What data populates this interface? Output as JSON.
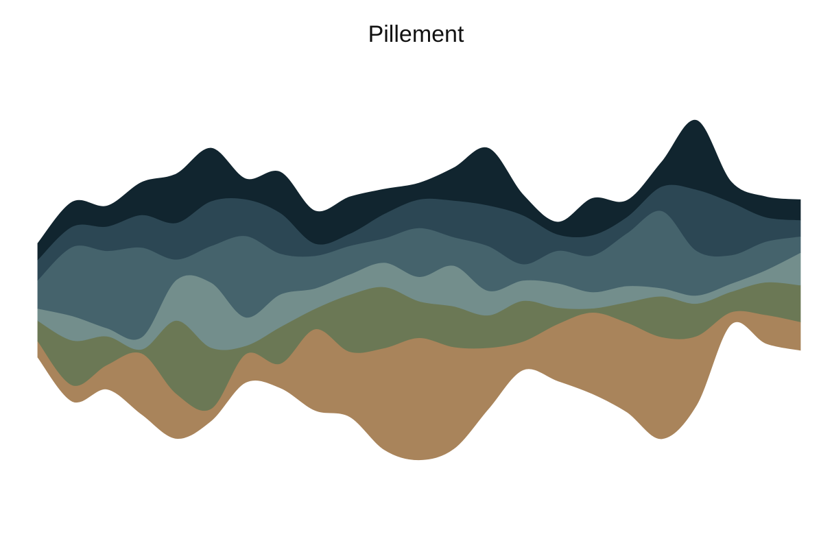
{
  "chart_data": {
    "type": "area",
    "title": "Pillement",
    "xlabel": "",
    "ylabel": "",
    "grid": false,
    "legend": "none",
    "baseline": "wiggle",
    "xlim": [
      0,
      22
    ],
    "ylim": [
      -5.6,
      5.6
    ],
    "x": [
      0,
      1,
      2,
      3,
      4,
      5,
      6,
      7,
      8,
      9,
      10,
      11,
      12,
      13,
      14,
      15,
      16,
      17,
      18,
      19,
      20,
      21,
      22
    ],
    "series": [
      {
        "color": "#a9845b",
        "values": [
          0.4,
          0.4,
          0.6,
          1.5,
          1.1,
          0.3,
          0.7,
          0.6,
          2.0,
          1.6,
          2.5,
          3.0,
          2.5,
          1.5,
          0.7,
          1.4,
          2.0,
          2.2,
          2.5,
          1.7,
          0.3,
          0.7,
          0.7
        ]
      },
      {
        "color": "#6b7855",
        "values": [
          0.5,
          1.1,
          0.7,
          0.1,
          1.8,
          1.5,
          0.2,
          0.9,
          0.5,
          1.4,
          1.5,
          0.9,
          1.0,
          0.8,
          1.0,
          0.4,
          0.1,
          0.5,
          1.0,
          0.8,
          0.5,
          0.8,
          0.9
        ]
      },
      {
        "color": "#738e8c",
        "values": [
          0.3,
          0.6,
          0.2,
          0.3,
          1.0,
          1.6,
          0.7,
          0.8,
          0.5,
          0.5,
          0.6,
          0.6,
          1.0,
          0.6,
          0.5,
          0.6,
          0.4,
          0.4,
          0.2,
          0.2,
          0.2,
          0.3,
          0.8
        ]
      },
      {
        "color": "#45636c",
        "values": [
          0.7,
          1.7,
          1.9,
          2.2,
          0.5,
          0.9,
          2.0,
          1.0,
          0.8,
          0.7,
          0.6,
          1.2,
          0.7,
          1.1,
          0.4,
          0.8,
          0.9,
          1.3,
          1.9,
          1.1,
          0.7,
          0.7,
          0.4
        ]
      },
      {
        "color": "#2c4754",
        "values": [
          0.5,
          0.5,
          0.6,
          0.8,
          0.9,
          1.1,
          0.9,
          1.0,
          0.3,
          0.3,
          0.6,
          0.7,
          0.9,
          1.0,
          1.2,
          0.4,
          0.5,
          0.4,
          0.6,
          1.5,
          1.3,
          0.6,
          0.4
        ]
      },
      {
        "color": "#11252f",
        "values": [
          0.4,
          0.6,
          0.5,
          0.8,
          1.2,
          1.3,
          0.5,
          1.0,
          0.8,
          0.9,
          0.6,
          0.4,
          0.8,
          1.4,
          0.5,
          0.3,
          0.9,
          0.4,
          0.6,
          1.7,
          0.5,
          0.5,
          0.5
        ]
      }
    ]
  }
}
